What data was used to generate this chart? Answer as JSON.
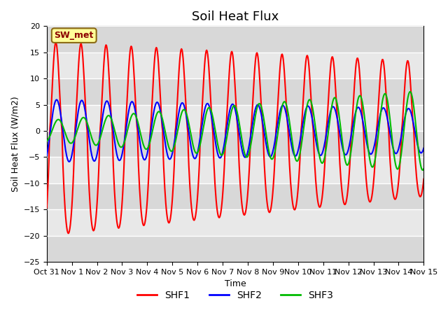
{
  "title": "Soil Heat Flux",
  "xlabel": "Time",
  "ylabel": "Soil Heat Flux (W/m2)",
  "ylim": [
    -25,
    20
  ],
  "yticks": [
    -25,
    -20,
    -15,
    -10,
    -5,
    0,
    5,
    10,
    15,
    20
  ],
  "xtick_labels": [
    "Oct 31",
    "Nov 1",
    "Nov 2",
    "Nov 3",
    "Nov 4",
    "Nov 5",
    "Nov 6",
    "Nov 7",
    "Nov 8",
    "Nov 9",
    "Nov 10",
    "Nov 11",
    "Nov 12",
    "Nov 13",
    "Nov 14",
    "Nov 15"
  ],
  "shf1_color": "#FF0000",
  "shf2_color": "#0000FF",
  "shf3_color": "#00BB00",
  "bg_color": "#FFFFFF",
  "plot_bg_color": "#E0E0E0",
  "annotation_label": "SW_met",
  "annotation_bg": "#FFFF99",
  "annotation_border": "#8B6914",
  "legend_entries": [
    "SHF1",
    "SHF2",
    "SHF3"
  ],
  "title_fontsize": 13,
  "axis_label_fontsize": 9,
  "tick_fontsize": 8,
  "linewidth": 1.5
}
